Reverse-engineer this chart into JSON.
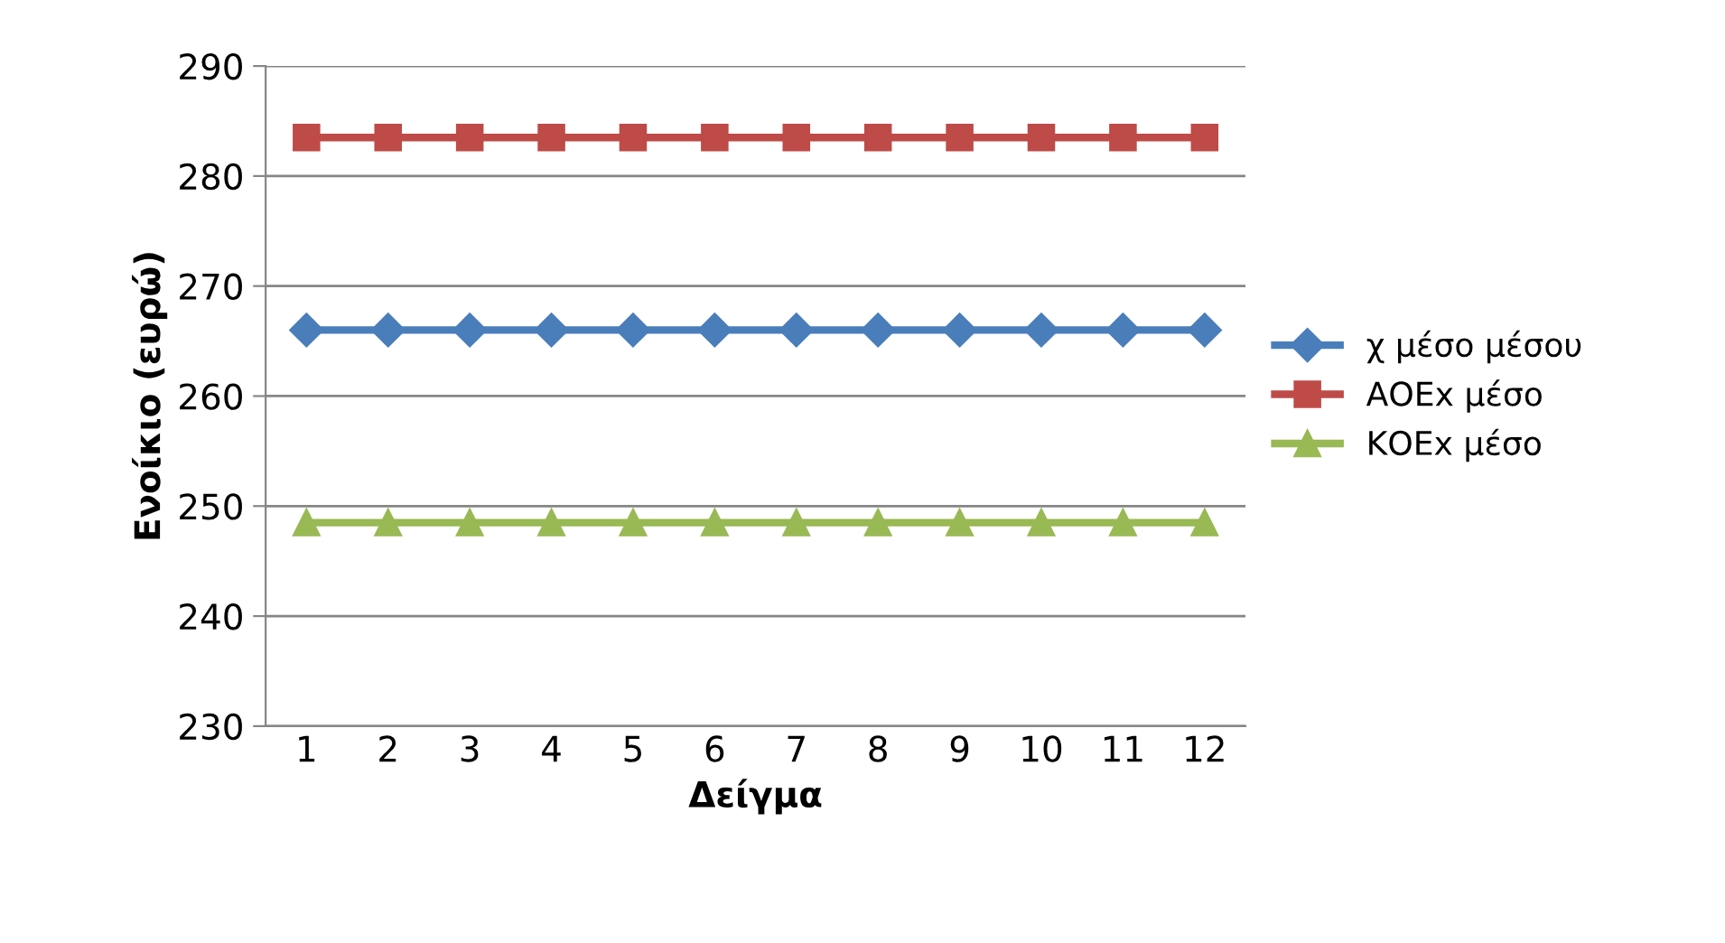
{
  "chart_data": {
    "type": "line",
    "xlabel": "Δείγμα",
    "ylabel": "Ενοίκιο (ευρώ)",
    "categories": [
      "1",
      "2",
      "3",
      "4",
      "5",
      "6",
      "7",
      "8",
      "9",
      "10",
      "11",
      "12"
    ],
    "series": [
      {
        "name": "χ μέσο μέσου",
        "color": "#4a7ebb",
        "marker": "diamond",
        "values": [
          266,
          266,
          266,
          266,
          266,
          266,
          266,
          266,
          266,
          266,
          266,
          266
        ]
      },
      {
        "name": "ΑΟΕx μέσο",
        "color": "#be4b48",
        "marker": "square",
        "values": [
          283.5,
          283.5,
          283.5,
          283.5,
          283.5,
          283.5,
          283.5,
          283.5,
          283.5,
          283.5,
          283.5,
          283.5
        ]
      },
      {
        "name": "ΚΟΕx μέσο",
        "color": "#98b954",
        "marker": "triangle",
        "values": [
          248.5,
          248.5,
          248.5,
          248.5,
          248.5,
          248.5,
          248.5,
          248.5,
          248.5,
          248.5,
          248.5,
          248.5
        ]
      }
    ],
    "ylim": [
      230,
      290
    ],
    "yticks": [
      230,
      240,
      250,
      260,
      270,
      280,
      290
    ],
    "grid": "y",
    "legend": "right",
    "line_style": "solid"
  }
}
